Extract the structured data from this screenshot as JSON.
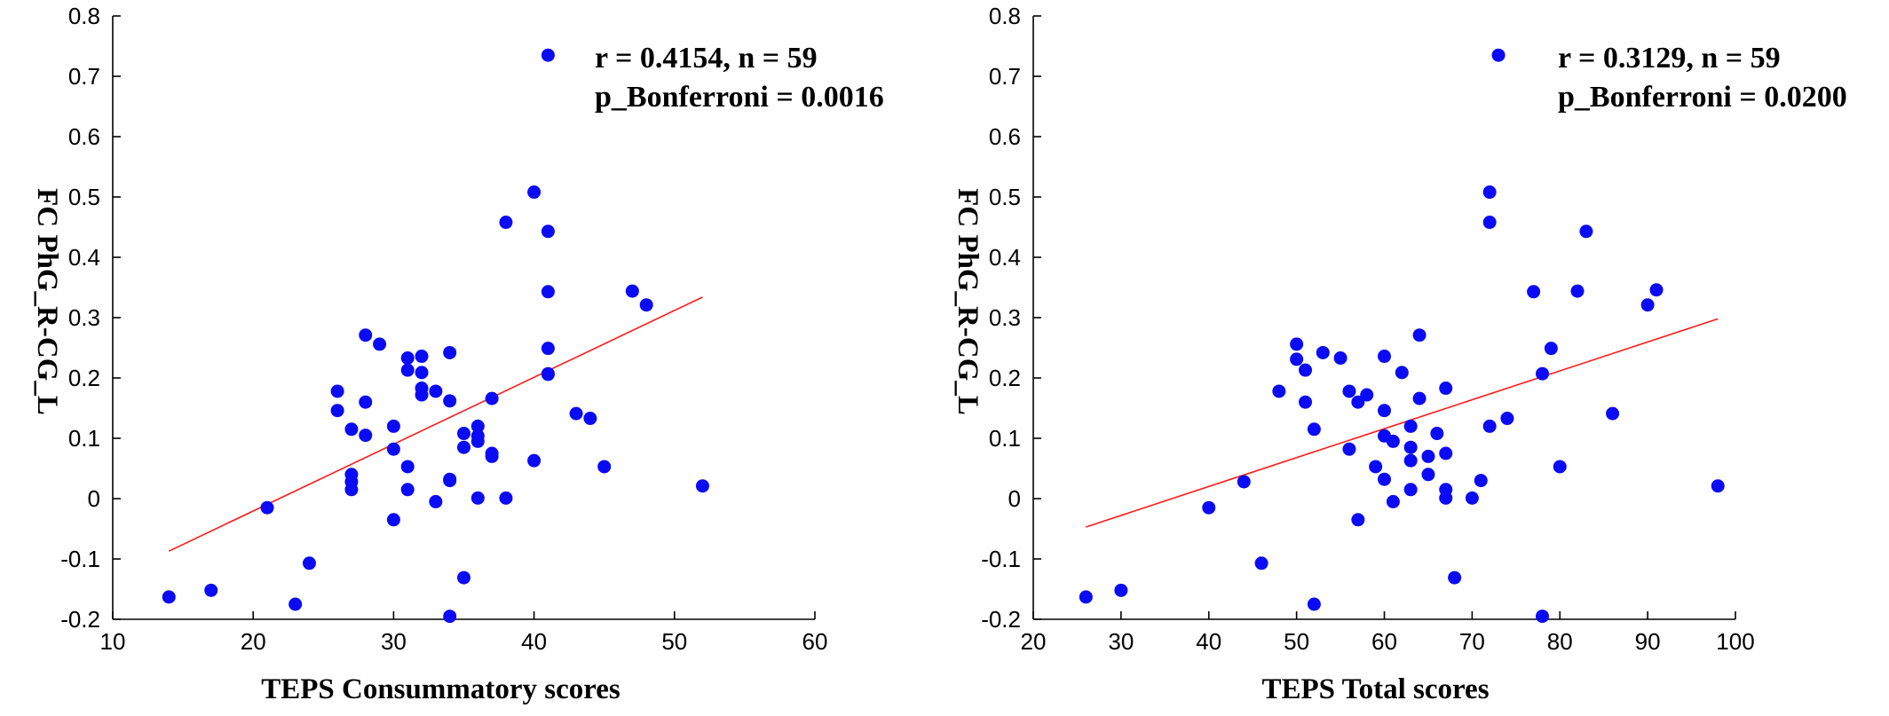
{
  "chart_data": [
    {
      "type": "scatter",
      "title": "",
      "xlabel": "TEPS Consummatory scores",
      "ylabel": "FC PhG_R-CG_L",
      "xlim": [
        10,
        60
      ],
      "ylim": [
        -0.2,
        0.8
      ],
      "xticks": [
        "10",
        "20",
        "30",
        "40",
        "50",
        "60"
      ],
      "yticks": [
        "-0.2",
        "-0.1",
        "0",
        "0.1",
        "0.2",
        "0.3",
        "0.4",
        "0.5",
        "0.6",
        "0.7",
        "0.8"
      ],
      "grid": false,
      "marker_color": "#0a0af5",
      "fit_color": "#ff1a1a",
      "annotation": [
        "r = 0.4154, n = 59",
        "p_Bonferroni = 0.0016"
      ],
      "fit_line": {
        "x": [
          14,
          52
        ],
        "y": [
          -0.087,
          0.334
        ]
      },
      "points": [
        [
          14,
          -0.163
        ],
        [
          17,
          -0.152
        ],
        [
          21,
          -0.015
        ],
        [
          23,
          -0.175
        ],
        [
          24,
          -0.107
        ],
        [
          26,
          0.178
        ],
        [
          26,
          0.146
        ],
        [
          27,
          0.115
        ],
        [
          27,
          0.04
        ],
        [
          27,
          0.028
        ],
        [
          27,
          0.015
        ],
        [
          28,
          0.271
        ],
        [
          28,
          0.16
        ],
        [
          28,
          0.105
        ],
        [
          29,
          0.256
        ],
        [
          30,
          0.12
        ],
        [
          30,
          0.082
        ],
        [
          30,
          -0.035
        ],
        [
          31,
          0.233
        ],
        [
          31,
          0.213
        ],
        [
          31,
          0.053
        ],
        [
          31,
          0.015
        ],
        [
          32,
          0.236
        ],
        [
          32,
          0.209
        ],
        [
          32,
          0.183
        ],
        [
          32,
          0.172
        ],
        [
          33,
          0.178
        ],
        [
          33,
          -0.005
        ],
        [
          34,
          0.242
        ],
        [
          34,
          0.162
        ],
        [
          34,
          0.032
        ],
        [
          34,
          0.03
        ],
        [
          34,
          -0.195
        ],
        [
          35,
          0.108
        ],
        [
          35,
          0.085
        ],
        [
          35,
          -0.131
        ],
        [
          36,
          0.12
        ],
        [
          36,
          0.104
        ],
        [
          36,
          0.001
        ],
        [
          37,
          0.166
        ],
        [
          37,
          0.075
        ],
        [
          37,
          0.07
        ],
        [
          38,
          0.458
        ],
        [
          38,
          0.001
        ],
        [
          40,
          0.508
        ],
        [
          40,
          0.063
        ],
        [
          41,
          0.735
        ],
        [
          41,
          0.443
        ],
        [
          41,
          0.343
        ],
        [
          41,
          0.249
        ],
        [
          41,
          0.207
        ],
        [
          41,
          0.206
        ],
        [
          43,
          0.141
        ],
        [
          44,
          0.133
        ],
        [
          45,
          0.053
        ],
        [
          47,
          0.344
        ],
        [
          48,
          0.321
        ],
        [
          52,
          0.021
        ],
        [
          36,
          0.095
        ]
      ]
    },
    {
      "type": "scatter",
      "title": "",
      "xlabel": "TEPS Total scores",
      "ylabel": "FC PhG_R-CG_L",
      "xlim": [
        20,
        100
      ],
      "ylim": [
        -0.2,
        0.8
      ],
      "xticks": [
        "20",
        "30",
        "40",
        "50",
        "60",
        "70",
        "80",
        "90",
        "100"
      ],
      "yticks": [
        "-0.2",
        "-0.1",
        "0",
        "0.1",
        "0.2",
        "0.3",
        "0.4",
        "0.5",
        "0.6",
        "0.7",
        "0.8"
      ],
      "grid": false,
      "marker_color": "#0a0af5",
      "fit_color": "#ff1a1a",
      "annotation": [
        "r = 0.3129, n = 59",
        "p_Bonferroni = 0.0200"
      ],
      "fit_line": {
        "x": [
          26,
          98
        ],
        "y": [
          -0.047,
          0.298
        ]
      },
      "points": [
        [
          26,
          -0.163
        ],
        [
          30,
          -0.152
        ],
        [
          40,
          -0.015
        ],
        [
          44,
          0.028
        ],
        [
          46,
          -0.107
        ],
        [
          48,
          0.178
        ],
        [
          50,
          0.256
        ],
        [
          50,
          0.231
        ],
        [
          51,
          0.213
        ],
        [
          51,
          0.16
        ],
        [
          52,
          0.115
        ],
        [
          52,
          -0.175
        ],
        [
          53,
          0.242
        ],
        [
          55,
          0.233
        ],
        [
          56,
          0.178
        ],
        [
          56,
          0.082
        ],
        [
          57,
          0.16
        ],
        [
          57,
          -0.035
        ],
        [
          58,
          0.172
        ],
        [
          59,
          0.053
        ],
        [
          60,
          0.236
        ],
        [
          60,
          0.146
        ],
        [
          60,
          0.104
        ],
        [
          60,
          0.032
        ],
        [
          61,
          -0.005
        ],
        [
          62,
          0.209
        ],
        [
          63,
          0.12
        ],
        [
          63,
          0.085
        ],
        [
          63,
          0.063
        ],
        [
          63,
          0.015
        ],
        [
          64,
          0.271
        ],
        [
          64,
          0.166
        ],
        [
          65,
          0.07
        ],
        [
          65,
          0.04
        ],
        [
          66,
          0.108
        ],
        [
          67,
          0.183
        ],
        [
          67,
          0.075
        ],
        [
          67,
          0.015
        ],
        [
          67,
          0.001
        ],
        [
          68,
          -0.131
        ],
        [
          70,
          0.001
        ],
        [
          71,
          0.03
        ],
        [
          72,
          0.508
        ],
        [
          72,
          0.458
        ],
        [
          72,
          0.12
        ],
        [
          73,
          0.735
        ],
        [
          74,
          0.133
        ],
        [
          77,
          0.343
        ],
        [
          78,
          0.207
        ],
        [
          78,
          -0.195
        ],
        [
          79,
          0.249
        ],
        [
          80,
          0.053
        ],
        [
          82,
          0.344
        ],
        [
          83,
          0.443
        ],
        [
          86,
          0.141
        ],
        [
          90,
          0.321
        ],
        [
          91,
          0.346
        ],
        [
          98,
          0.021
        ],
        [
          61,
          0.095
        ]
      ]
    }
  ]
}
